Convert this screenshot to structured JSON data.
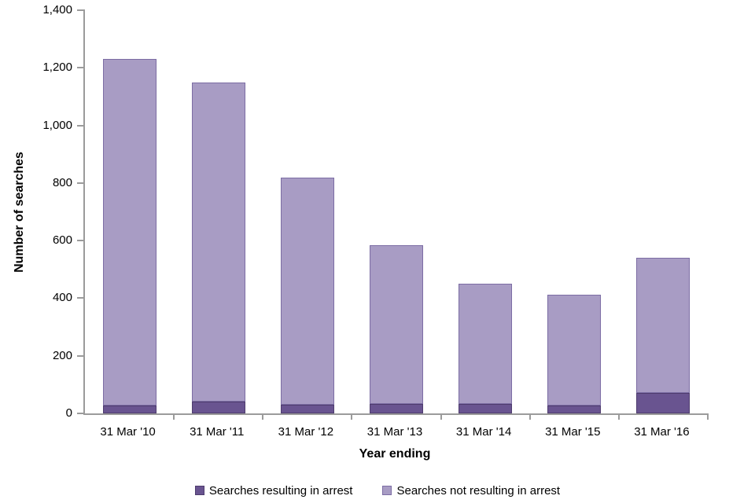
{
  "chart": {
    "type": "bar",
    "subtype": "stacked-vertical",
    "ylabel": "Number of searches",
    "xlabel": "Year ending",
    "ylim": [
      0,
      1400
    ],
    "ytick_step": 200,
    "ytick_labels": [
      "1,400",
      "1,200",
      "1,000",
      "800",
      "600",
      "400",
      "200",
      "0"
    ],
    "grid": "off",
    "legend_position": "bottom-center",
    "axis_color": "#9b9b9b",
    "categories": [
      "31 Mar '10",
      "31 Mar '11",
      "31 Mar '12",
      "31 Mar '13",
      "31 Mar '14",
      "31 Mar '15",
      "31 Mar '16"
    ],
    "series": [
      {
        "name": "Searches resulting in arrest",
        "color": "#695490",
        "border_color": "#4e3c6e",
        "values": [
          28,
          41,
          30,
          32,
          33,
          28,
          70
        ]
      },
      {
        "name": "Searches not resulting in arrest",
        "color": "#a89cc4",
        "border_color": "#7c6da4",
        "values": [
          1202,
          1109,
          790,
          551,
          417,
          383,
          471
        ]
      }
    ],
    "stacked_totals": [
      1230,
      1150,
      820,
      583,
      450,
      411,
      541
    ]
  }
}
